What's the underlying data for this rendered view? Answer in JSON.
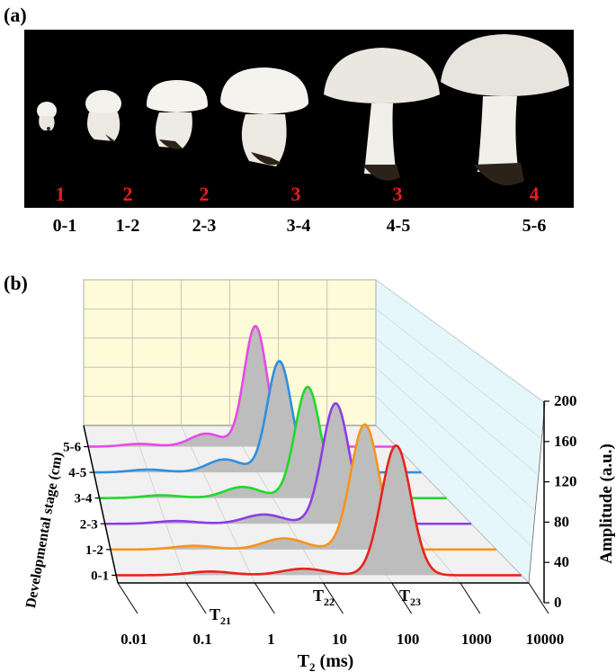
{
  "panel_a": {
    "label": "(a)",
    "grades": [
      "1",
      "2",
      "2",
      "3",
      "3",
      "4"
    ],
    "stages": [
      "0-1",
      "1-2",
      "2-3",
      "3-4",
      "4-5",
      "5-6"
    ],
    "colors": {
      "background": "#000000",
      "cap": "#f2f1ec",
      "grade": "#e81c1c"
    }
  },
  "panel_b": {
    "label": "(b)"
  },
  "chart_data": {
    "type": "line",
    "subtype": "3d-waterfall",
    "xlabel_prefix": "T",
    "xlabel_sub": "2",
    "xlabel_suffix": " (ms)",
    "xscale": "log",
    "xlim": [
      0.01,
      10000
    ],
    "xticks": [
      "0.01",
      "0.1",
      "1",
      "10",
      "100",
      "1000",
      "10000"
    ],
    "ylabel": "Developmental stage (cm)",
    "zlabel": "Amplitude (a.u.)",
    "zlim": [
      0,
      200
    ],
    "zticks": [
      "0",
      "40",
      "80",
      "120",
      "160",
      "200"
    ],
    "annotations": [
      {
        "base": "T",
        "sub": "21",
        "x": 0.28
      },
      {
        "base": "T",
        "sub": "22",
        "x": 6
      },
      {
        "base": "T",
        "sub": "23",
        "x": 130
      }
    ],
    "series": [
      {
        "name": "0-1",
        "color": "#e8241c",
        "peaks": [
          [
            0.25,
            4
          ],
          [
            6,
            7
          ],
          [
            140,
            140
          ]
        ]
      },
      {
        "name": "1-2",
        "color": "#f7941d",
        "peaks": [
          [
            0.2,
            4
          ],
          [
            5,
            12
          ],
          [
            90,
            135
          ]
        ]
      },
      {
        "name": "2-3",
        "color": "#8e3ce6",
        "peaks": [
          [
            0.15,
            3
          ],
          [
            4,
            10
          ],
          [
            60,
            130
          ]
        ]
      },
      {
        "name": "3-4",
        "color": "#22d82c",
        "peaks": [
          [
            0.12,
            3
          ],
          [
            3,
            12
          ],
          [
            40,
            120
          ]
        ]
      },
      {
        "name": "4-5",
        "color": "#2f8fe0",
        "peaks": [
          [
            0.1,
            3
          ],
          [
            2.5,
            14
          ],
          [
            25,
            120
          ]
        ]
      },
      {
        "name": "5-6",
        "color": "#e74ae6",
        "peaks": [
          [
            0.1,
            3
          ],
          [
            2,
            14
          ],
          [
            18,
            130
          ]
        ]
      }
    ],
    "grid": true,
    "colors": {
      "back_wall": "#fdfbd8",
      "side_wall": "#e6f7fb",
      "floor": "#f1f1f1",
      "fill": "#bdbdbd"
    }
  }
}
